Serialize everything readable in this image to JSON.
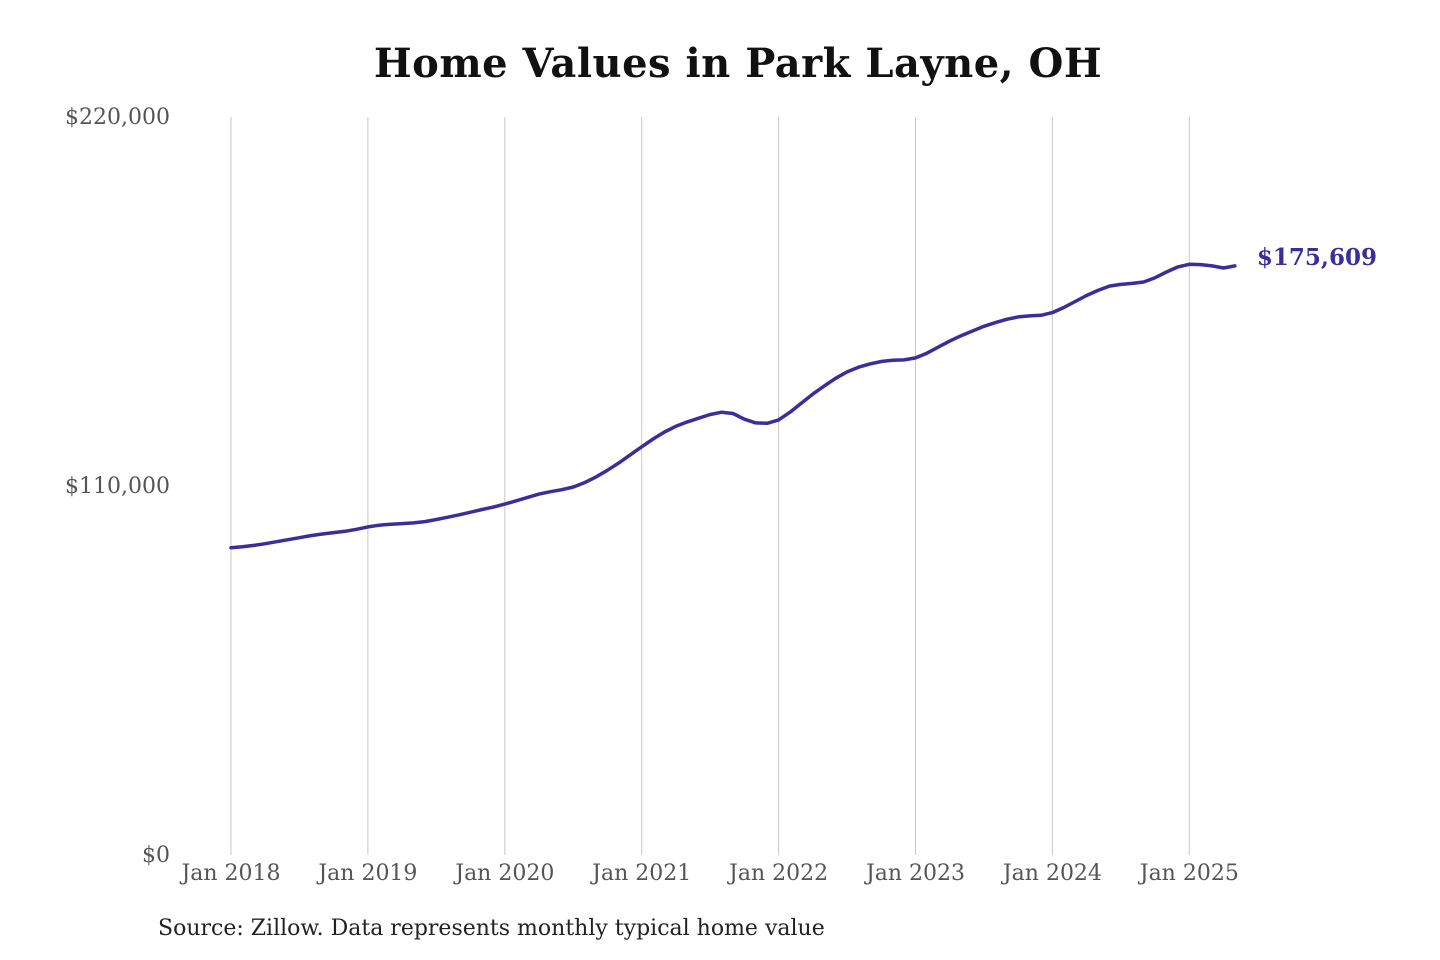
{
  "chart_data": {
    "type": "line",
    "title": "Home Values in Park Layne, OH",
    "xlabel": "",
    "ylabel": "",
    "ylim": [
      0,
      220000
    ],
    "y_ticks": [
      {
        "value": 0,
        "label": "$0"
      },
      {
        "value": 110000,
        "label": "$110,000"
      },
      {
        "value": 220000,
        "label": "$220,000"
      }
    ],
    "x_ticks": [
      {
        "date": "2018-01",
        "label": "Jan 2018"
      },
      {
        "date": "2019-01",
        "label": "Jan 2019"
      },
      {
        "date": "2020-01",
        "label": "Jan 2020"
      },
      {
        "date": "2021-01",
        "label": "Jan 2021"
      },
      {
        "date": "2022-01",
        "label": "Jan 2022"
      },
      {
        "date": "2023-01",
        "label": "Jan 2023"
      },
      {
        "date": "2024-01",
        "label": "Jan 2024"
      },
      {
        "date": "2025-01",
        "label": "Jan 2025"
      }
    ],
    "grid": "vertical",
    "line_color": "#3a2f9a",
    "end_label": "$175,609",
    "series": [
      {
        "name": "",
        "x": [
          "2018-01",
          "2018-02",
          "2018-03",
          "2018-04",
          "2018-05",
          "2018-06",
          "2018-07",
          "2018-08",
          "2018-09",
          "2018-10",
          "2018-11",
          "2018-12",
          "2019-01",
          "2019-02",
          "2019-03",
          "2019-04",
          "2019-05",
          "2019-06",
          "2019-07",
          "2019-08",
          "2019-09",
          "2019-10",
          "2019-11",
          "2019-12",
          "2020-01",
          "2020-02",
          "2020-03",
          "2020-04",
          "2020-05",
          "2020-06",
          "2020-07",
          "2020-08",
          "2020-09",
          "2020-10",
          "2020-11",
          "2020-12",
          "2021-01",
          "2021-02",
          "2021-03",
          "2021-04",
          "2021-05",
          "2021-06",
          "2021-07",
          "2021-08",
          "2021-09",
          "2021-10",
          "2021-11",
          "2021-12",
          "2022-01",
          "2022-02",
          "2022-03",
          "2022-04",
          "2022-05",
          "2022-06",
          "2022-07",
          "2022-08",
          "2022-09",
          "2022-10",
          "2022-11",
          "2022-12",
          "2023-01",
          "2023-02",
          "2023-03",
          "2023-04",
          "2023-05",
          "2023-06",
          "2023-07",
          "2023-08",
          "2023-09",
          "2023-10",
          "2023-11",
          "2023-12",
          "2024-01",
          "2024-02",
          "2024-03",
          "2024-04",
          "2024-05",
          "2024-06",
          "2024-07",
          "2024-08",
          "2024-09",
          "2024-10",
          "2024-11",
          "2024-12",
          "2025-01",
          "2025-02",
          "2025-03",
          "2025-04",
          "2025-05"
        ],
        "values": [
          91600,
          91900,
          92300,
          92800,
          93400,
          94000,
          94600,
          95200,
          95700,
          96100,
          96500,
          97100,
          97800,
          98300,
          98600,
          98800,
          99000,
          99400,
          100000,
          100700,
          101400,
          102200,
          103000,
          103700,
          104600,
          105600,
          106600,
          107600,
          108300,
          108900,
          109700,
          111000,
          112700,
          114700,
          116900,
          119300,
          121700,
          124000,
          126100,
          127800,
          129100,
          130200,
          131300,
          132000,
          131600,
          129900,
          128800,
          128700,
          129700,
          132000,
          134700,
          137400,
          139800,
          142100,
          144000,
          145400,
          146400,
          147100,
          147500,
          147600,
          148200,
          149600,
          151400,
          153200,
          154800,
          156200,
          157600,
          158700,
          159700,
          160400,
          160700,
          160900,
          161700,
          163200,
          165000,
          166800,
          168300,
          169600,
          170100,
          170400,
          170800,
          172100,
          173800,
          175300,
          176100,
          176000,
          175600,
          175000,
          175609
        ]
      }
    ]
  },
  "source": "Source: Zillow. Data represents monthly typical home value"
}
